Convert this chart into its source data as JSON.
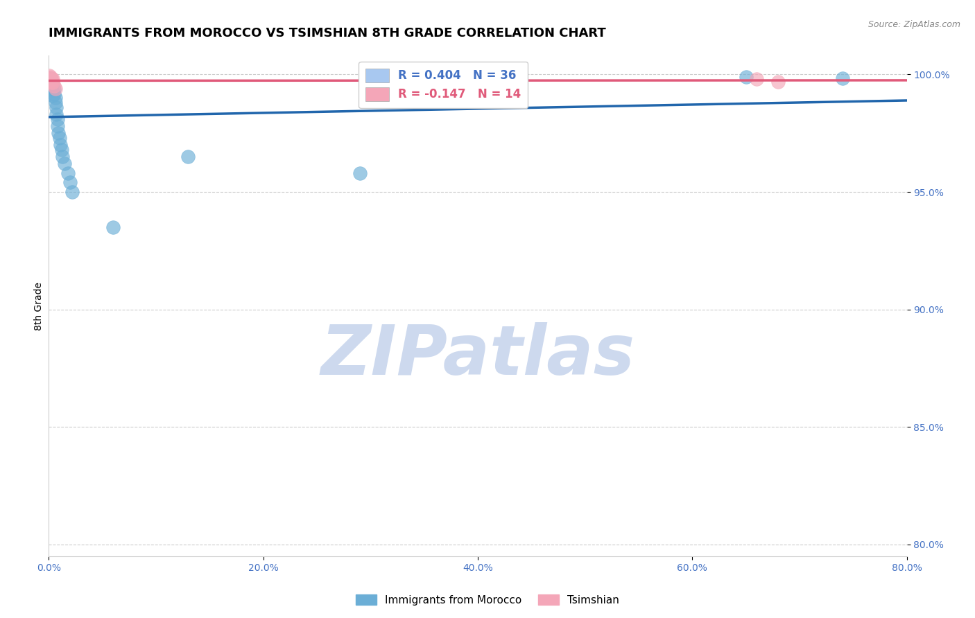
{
  "title": "IMMIGRANTS FROM MOROCCO VS TSIMSHIAN 8TH GRADE CORRELATION CHART",
  "source_text": "Source: ZipAtlas.com",
  "ylabel": "8th Grade",
  "watermark": "ZIPatlas",
  "xmin": 0.0,
  "xmax": 0.8,
  "ymin": 0.795,
  "ymax": 1.008,
  "yticks": [
    0.8,
    0.85,
    0.9,
    0.95,
    1.0
  ],
  "ytick_labels": [
    "80.0%",
    "85.0%",
    "90.0%",
    "95.0%",
    "100.0%"
  ],
  "xticks": [
    0.0,
    0.2,
    0.4,
    0.6,
    0.8
  ],
  "xtick_labels": [
    "0.0%",
    "20.0%",
    "40.0%",
    "60.0%",
    "80.0%"
  ],
  "legend_entries": [
    {
      "label": "R = 0.404   N = 36",
      "color": "#a8c8f0",
      "text_color": "#4472c4"
    },
    {
      "label": "R = -0.147   N = 14",
      "color": "#f4a6b8",
      "text_color": "#e05a7a"
    }
  ],
  "morocco_x": [
    0.0005,
    0.001,
    0.001,
    0.0015,
    0.002,
    0.002,
    0.002,
    0.0025,
    0.003,
    0.003,
    0.003,
    0.004,
    0.004,
    0.004,
    0.005,
    0.005,
    0.006,
    0.006,
    0.007,
    0.007,
    0.008,
    0.008,
    0.009,
    0.01,
    0.011,
    0.012,
    0.013,
    0.015,
    0.018,
    0.02,
    0.022,
    0.06,
    0.13,
    0.29,
    0.65,
    0.74
  ],
  "morocco_y": [
    0.9985,
    0.9975,
    0.997,
    0.998,
    0.9985,
    0.9965,
    0.9955,
    0.996,
    0.997,
    0.9955,
    0.994,
    0.996,
    0.993,
    0.991,
    0.9935,
    0.9915,
    0.99,
    0.988,
    0.986,
    0.983,
    0.981,
    0.978,
    0.975,
    0.973,
    0.97,
    0.968,
    0.965,
    0.962,
    0.958,
    0.954,
    0.95,
    0.935,
    0.965,
    0.958,
    0.999,
    0.9985
  ],
  "tsimshian_x": [
    0.0005,
    0.001,
    0.001,
    0.0015,
    0.002,
    0.002,
    0.003,
    0.003,
    0.004,
    0.004,
    0.005,
    0.006,
    0.66,
    0.68
  ],
  "tsimshian_y": [
    0.9995,
    0.9985,
    0.9975,
    0.999,
    0.9985,
    0.997,
    0.998,
    0.9965,
    0.998,
    0.9965,
    0.995,
    0.994,
    0.998,
    0.997
  ],
  "morocco_color": "#6baed6",
  "morocco_edge_color": "#4393c3",
  "tsimshian_color": "#f4a6b8",
  "tsimshian_edge_color": "#e05a7a",
  "morocco_line_color": "#2166ac",
  "tsimshian_line_color": "#e05a7a",
  "grid_color": "#cccccc",
  "background_color": "#ffffff",
  "tick_color": "#4472c4",
  "title_fontsize": 13,
  "axis_label_fontsize": 10,
  "tick_fontsize": 10,
  "legend_fontsize": 12,
  "watermark_color": "#cdd9ee",
  "watermark_fontsize": 72
}
